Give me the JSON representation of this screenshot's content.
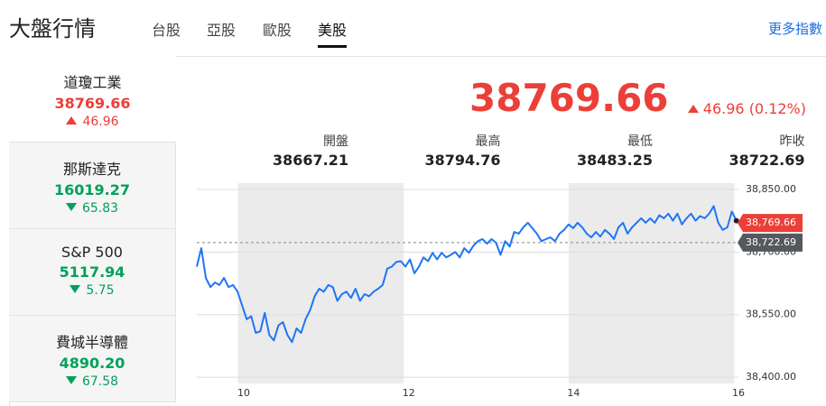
{
  "header": {
    "title": "大盤行情",
    "tabs": [
      "台股",
      "亞股",
      "歐股",
      "美股"
    ],
    "more": "更多指數"
  },
  "sidebar": [
    {
      "name": "道瓊工業",
      "price": "38769.66",
      "change": "46.96",
      "direction": "up"
    },
    {
      "name": "那斯達克",
      "price": "16019.27",
      "change": "65.83",
      "direction": "down"
    },
    {
      "name": "S&P 500",
      "price": "5117.94",
      "change": "5.75",
      "direction": "down"
    },
    {
      "name": "費城半導體",
      "price": "4890.20",
      "change": "67.58",
      "direction": "down"
    }
  ],
  "summary": {
    "price": "38769.66",
    "change": "46.96 (0.12%)",
    "stats": [
      {
        "label": "開盤",
        "value": "38667.21"
      },
      {
        "label": "最高",
        "value": "38794.76"
      },
      {
        "label": "最低",
        "value": "38483.25"
      },
      {
        "label": "昨收",
        "value": "38722.69"
      }
    ]
  },
  "chart_data": {
    "type": "line",
    "color": "#2075f5",
    "x": [
      9.43,
      9.485,
      9.54,
      9.595,
      9.65,
      9.705,
      9.76,
      9.815,
      9.87,
      9.925,
      9.98,
      10.035,
      10.09,
      10.145,
      10.2,
      10.255,
      10.31,
      10.365,
      10.42,
      10.475,
      10.53,
      10.585,
      10.64,
      10.695,
      10.75,
      10.805,
      10.86,
      10.915,
      10.97,
      11.025,
      11.08,
      11.135,
      11.19,
      11.245,
      11.3,
      11.355,
      11.41,
      11.465,
      11.52,
      11.575,
      11.63,
      11.685,
      11.74,
      11.795,
      11.85,
      11.905,
      11.96,
      12.015,
      12.07,
      12.125,
      12.18,
      12.235,
      12.29,
      12.345,
      12.4,
      12.455,
      12.51,
      12.565,
      12.62,
      12.675,
      12.73,
      12.785,
      12.84,
      12.895,
      12.95,
      13.005,
      13.06,
      13.115,
      13.17,
      13.225,
      13.28,
      13.335,
      13.39,
      13.445,
      13.5,
      13.555,
      13.61,
      13.665,
      13.72,
      13.775,
      13.83,
      13.885,
      13.94,
      13.995,
      14.05,
      14.105,
      14.16,
      14.215,
      14.27,
      14.325,
      14.38,
      14.435,
      14.49,
      14.545,
      14.6,
      14.655,
      14.71,
      14.765,
      14.82,
      14.875,
      14.93,
      14.985,
      15.04,
      15.095,
      15.15,
      15.205,
      15.26,
      15.315,
      15.37,
      15.425,
      15.48,
      15.535,
      15.59,
      15.645,
      15.7,
      15.755,
      15.81,
      15.865,
      15.92,
      15.975
    ],
    "values": [
      38665,
      38709,
      38638,
      38616,
      38627,
      38621,
      38638,
      38616,
      38621,
      38605,
      38572,
      38539,
      38546,
      38506,
      38510,
      38554,
      38501,
      38488,
      38524,
      38532,
      38501,
      38484,
      38517,
      38506,
      38539,
      38561,
      38594,
      38612,
      38605,
      38621,
      38616,
      38583,
      38599,
      38605,
      38590,
      38612,
      38583,
      38599,
      38594,
      38605,
      38612,
      38621,
      38660,
      38665,
      38676,
      38678,
      38665,
      38682,
      38649,
      38665,
      38687,
      38678,
      38698,
      38682,
      38698,
      38687,
      38693,
      38700,
      38687,
      38709,
      38698,
      38715,
      38726,
      38731,
      38720,
      38731,
      38722,
      38693,
      38726,
      38713,
      38748,
      38744,
      38759,
      38770,
      38757,
      38744,
      38726,
      38731,
      38735,
      38726,
      38744,
      38753,
      38766,
      38757,
      38770,
      38759,
      38744,
      38735,
      38748,
      38737,
      38753,
      38744,
      38731,
      38759,
      38770,
      38744,
      38759,
      38770,
      38781,
      38770,
      38781,
      38770,
      38788,
      38781,
      38792,
      38775,
      38792,
      38766,
      38781,
      38792,
      38775,
      38786,
      38781,
      38792,
      38810,
      38770,
      38753,
      38759,
      38797,
      38775
    ],
    "xlim": [
      9.43,
      16
    ],
    "xticks": [
      10,
      12,
      14,
      16
    ],
    "ylim": [
      38385,
      38865
    ],
    "yticks": [
      {
        "value": 38400,
        "label": "38,400.00"
      },
      {
        "value": 38550,
        "label": "38,550.00"
      },
      {
        "value": 38700,
        "label": "38,700.00"
      },
      {
        "value": 38850,
        "label": "38,850.00"
      }
    ],
    "grid": true,
    "bands": [
      [
        9.93,
        11.94
      ],
      [
        13.94,
        15.95
      ]
    ],
    "reference_line": {
      "value": 38722.69,
      "label": "38,722.69"
    },
    "last_label": {
      "value": 38769.66,
      "label": "38,769.66"
    }
  }
}
